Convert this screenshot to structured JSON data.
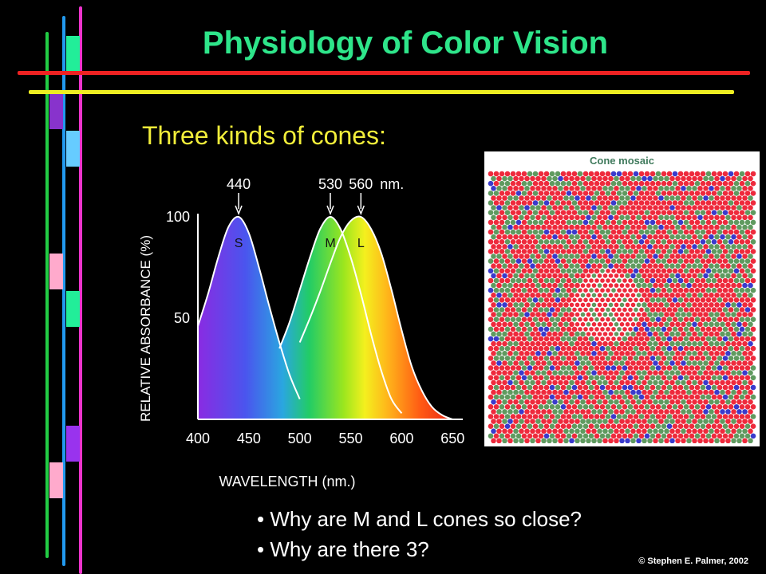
{
  "title": "Physiology of Color Vision",
  "subtitle": "Three kinds of cones:",
  "chart_data": {
    "type": "line",
    "title": "",
    "xlabel": "WAVELENGTH (nm.)",
    "ylabel": "RELATIVE ABSORBANCE (%)",
    "xlim": [
      400,
      660
    ],
    "ylim": [
      0,
      100
    ],
    "x_ticks": [
      "400",
      "450",
      "500",
      "550",
      "600",
      "650"
    ],
    "y_ticks": [
      "100",
      "50"
    ],
    "peak_labels": [
      "440",
      "530",
      "560"
    ],
    "peak_unit": "nm.",
    "series": [
      {
        "name": "S",
        "peak": 440,
        "x": [
          400,
          410,
          420,
          430,
          440,
          450,
          460,
          470,
          480,
          490,
          500
        ],
        "values": [
          46,
          62,
          80,
          95,
          100,
          92,
          75,
          56,
          38,
          22,
          10
        ]
      },
      {
        "name": "M",
        "peak": 530,
        "x": [
          480,
          490,
          500,
          510,
          520,
          530,
          540,
          550,
          560,
          570,
          580,
          590,
          600
        ],
        "values": [
          35,
          48,
          64,
          80,
          94,
          100,
          94,
          80,
          62,
          42,
          24,
          10,
          3
        ]
      },
      {
        "name": "L",
        "peak": 560,
        "x": [
          500,
          510,
          520,
          530,
          540,
          550,
          560,
          570,
          580,
          590,
          600,
          610,
          620,
          630,
          640,
          650
        ],
        "values": [
          38,
          50,
          63,
          77,
          90,
          98,
          100,
          94,
          82,
          64,
          44,
          26,
          14,
          6,
          2,
          0
        ]
      }
    ]
  },
  "mosaic": {
    "label": "Cone mosaic",
    "colors": {
      "L": "#ee2a3c",
      "M": "#5f9a5f",
      "S": "#3a3acc"
    }
  },
  "bullets": [
    "Why are M and L cones so close?",
    "Why are there 3?"
  ],
  "credit": "© Stephen E. Palmer, 2002",
  "decor": {
    "vertical_line_colors": [
      "#22cc44",
      "#2299ee",
      "#ee33cc"
    ],
    "swatch_colors": [
      "#22ee99",
      "#8833cc",
      "#66ccff",
      "#ffaacc",
      "#22ee99",
      "#9933ee",
      "#ffaacc"
    ],
    "rule_colors": [
      "#ee2222",
      "#eeee22"
    ]
  }
}
